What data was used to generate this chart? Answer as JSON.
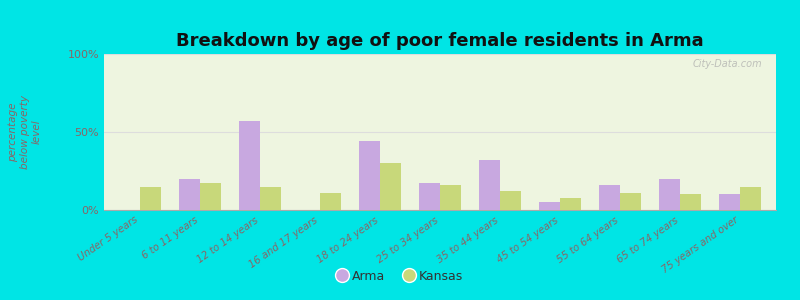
{
  "title": "Breakdown by age of poor female residents in Arma",
  "ylabel": "percentage\nbelow poverty\nlevel",
  "categories": [
    "Under 5 years",
    "6 to 11 years",
    "12 to 14 years",
    "16 and 17 years",
    "18 to 24 years",
    "25 to 34 years",
    "35 to 44 years",
    "45 to 54 years",
    "55 to 64 years",
    "65 to 74 years",
    "75 years and over"
  ],
  "arma_values": [
    0,
    20,
    57,
    0,
    44,
    17,
    32,
    5,
    16,
    20,
    10
  ],
  "kansas_values": [
    15,
    17,
    15,
    11,
    30,
    16,
    12,
    8,
    11,
    10,
    15
  ],
  "arma_color": "#c8a8e0",
  "kansas_color": "#c8d87a",
  "background_outer": "#00e5e5",
  "background_plot": "#eef5e0",
  "ylim": [
    0,
    100
  ],
  "yticks": [
    0,
    50,
    100
  ],
  "ytick_labels": [
    "0%",
    "50%",
    "100%"
  ],
  "title_fontsize": 13,
  "legend_labels": [
    "Arma",
    "Kansas"
  ],
  "bar_width": 0.35,
  "gridline_color": "#dddddd",
  "watermark": "City-Data.com",
  "tick_color": "#886666",
  "ylabel_color": "#886666"
}
